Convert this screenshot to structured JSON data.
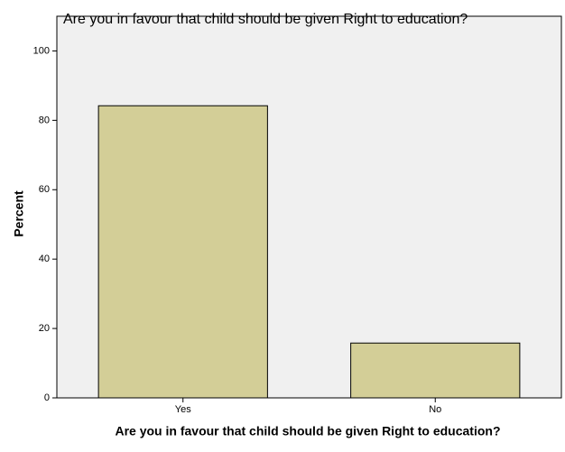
{
  "chart_data": {
    "type": "bar",
    "title": "Are you in favour that child should be given Right to education?",
    "x_label": "Are you in favour that child should be given Right to education?",
    "y_label": "Percent",
    "categories": [
      "Yes",
      "No"
    ],
    "values": [
      84.2,
      15.8
    ],
    "color": "#d3ce97",
    "ylim": [
      0,
      110
    ],
    "yticks": [
      0,
      20,
      40,
      60,
      80,
      100
    ]
  }
}
